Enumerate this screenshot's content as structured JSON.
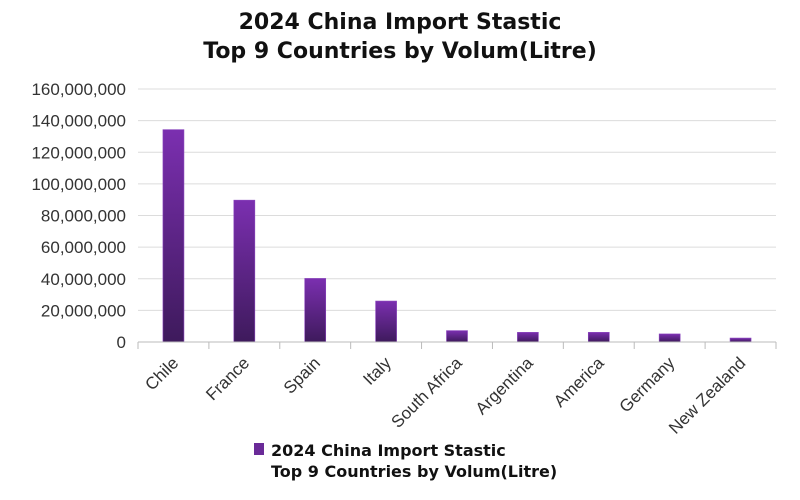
{
  "chart_data": {
    "type": "bar",
    "title": [
      "2024 China Import Stastic",
      "Top 9 Countries by Volum(Litre)"
    ],
    "categories": [
      "Chile",
      "France",
      "Spain",
      "Italy",
      "South Africa",
      "Argentina",
      "America",
      "Germany",
      "New Zealand"
    ],
    "series": [
      {
        "name": "2024 China Import Stastic Top 9 Countries by Volum(Litre)",
        "values": [
          134300000,
          89700000,
          40200000,
          25900000,
          7200000,
          6100000,
          6100000,
          5100000,
          2500000
        ],
        "color": "#7b2fb0"
      }
    ],
    "yticks": [
      "0",
      "20,000,000",
      "40,000,000",
      "60,000,000",
      "80,000,000",
      "100,000,000",
      "120,000,000",
      "140,000,000",
      "160,000,000"
    ],
    "ylim": [
      0,
      160000000
    ],
    "grid": true,
    "legend": {
      "position": "bottom",
      "lines": [
        "2024 China Import Stastic",
        "Top 9 Countries by Volum(Litre)"
      ]
    }
  }
}
